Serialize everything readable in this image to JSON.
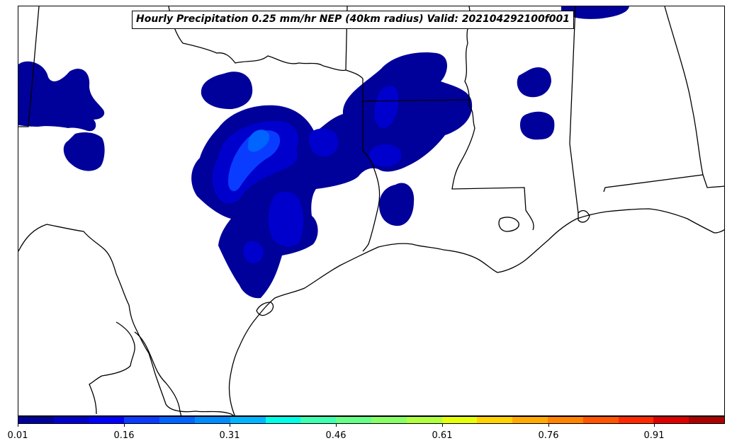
{
  "title": "Hourly Precipitation 0.25 mm/hr NEP (40km radius) Valid: 202104292100f001",
  "colorbar": {
    "colors": [
      "#00009a",
      "#0000cd",
      "#0000ff",
      "#0a3cff",
      "#0064ff",
      "#008cff",
      "#00b4ff",
      "#00ffe6",
      "#40ffb0",
      "#66ff88",
      "#88ff66",
      "#b0ff40",
      "#e6ff0a",
      "#ffd200",
      "#ffaa00",
      "#ff8200",
      "#ff5500",
      "#ff2800",
      "#dc0000",
      "#aa0000"
    ],
    "tick_labels": [
      "0.01",
      "0.16",
      "0.31",
      "0.46",
      "0.61",
      "0.76",
      "0.91"
    ]
  },
  "fill_colors": {
    "level1": "#00009a",
    "level2": "#0000cd",
    "level3": "#0a3cff",
    "level4": "#0064ff"
  }
}
